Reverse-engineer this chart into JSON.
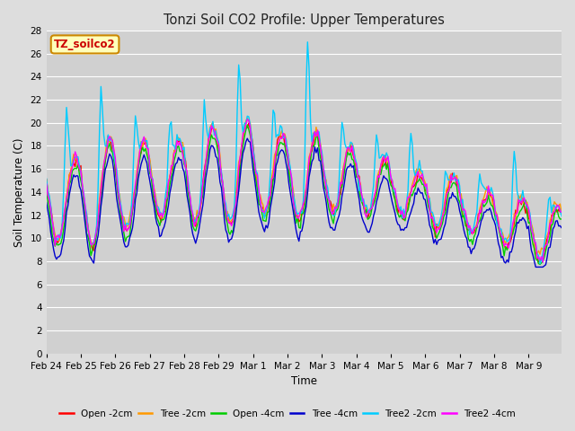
{
  "title": "Tonzi Soil CO2 Profile: Upper Temperatures",
  "xlabel": "Time",
  "ylabel": "Soil Temperature (C)",
  "ylim": [
    0,
    28
  ],
  "yticks": [
    0,
    2,
    4,
    6,
    8,
    10,
    12,
    14,
    16,
    18,
    20,
    22,
    24,
    26,
    28
  ],
  "bg_color": "#dddddd",
  "plot_bg_color": "#d0d0d0",
  "grid_color": "#bbbbbb",
  "title_color": "#222222",
  "watermark_text": "TZ_soilco2",
  "watermark_fg": "#cc0000",
  "watermark_bg": "#ffffbb",
  "watermark_border": "#cc8800",
  "series_colors": {
    "Open -2cm": "#ff0000",
    "Tree -2cm": "#ff9900",
    "Open -4cm": "#00cc00",
    "Tree -4cm": "#0000cc",
    "Tree2 -2cm": "#00ccff",
    "Tree2 -4cm": "#ff00ff"
  },
  "legend_order": [
    "Open -2cm",
    "Tree -2cm",
    "Open -4cm",
    "Tree -4cm",
    "Tree2 -2cm",
    "Tree2 -4cm"
  ]
}
